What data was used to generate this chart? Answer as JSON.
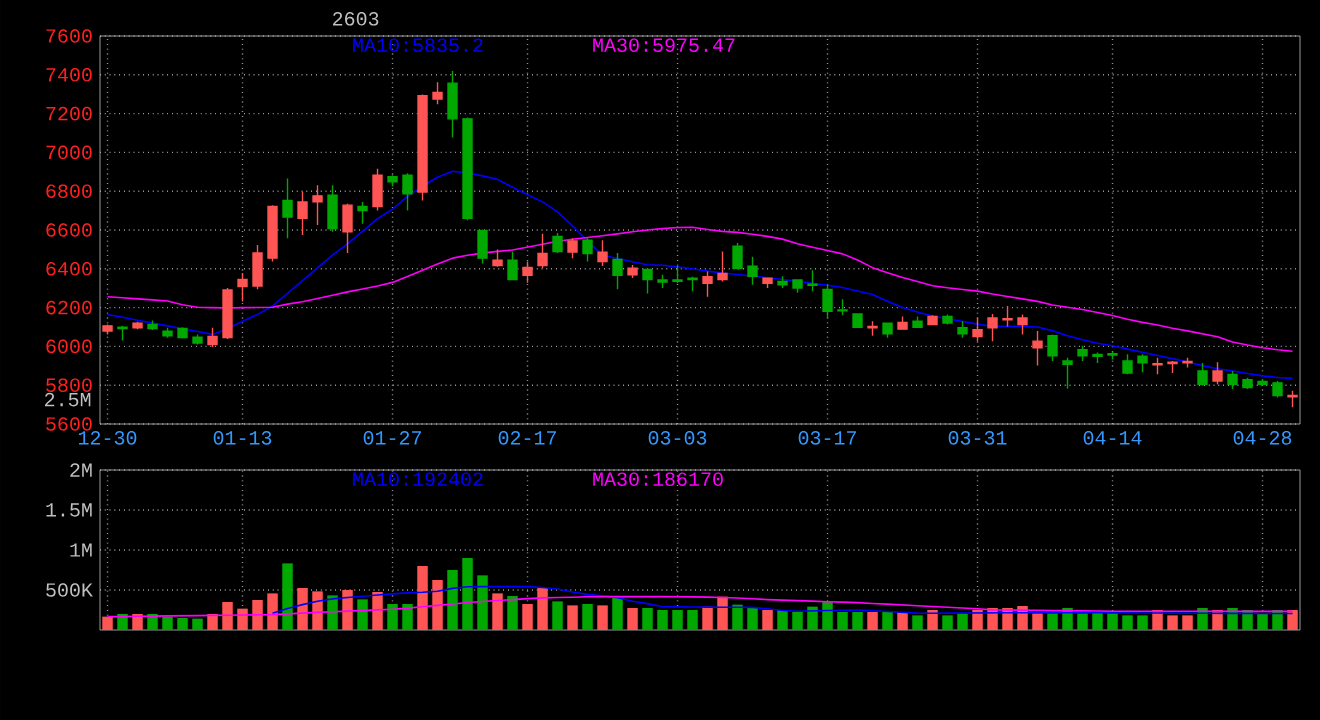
{
  "chart_data": [
    {
      "type": "candlestick",
      "title": "2603",
      "categories": [
        "12-30",
        null,
        null,
        null,
        null,
        null,
        null,
        null,
        null,
        "01-13",
        null,
        null,
        null,
        null,
        null,
        null,
        null,
        null,
        null,
        "01-27",
        null,
        null,
        null,
        null,
        null,
        null,
        null,
        null,
        "02-17",
        null,
        null,
        null,
        null,
        null,
        null,
        null,
        null,
        null,
        "03-03",
        null,
        null,
        null,
        null,
        null,
        null,
        null,
        null,
        null,
        "03-17",
        null,
        null,
        null,
        null,
        null,
        null,
        null,
        null,
        null,
        "03-31",
        null,
        null,
        null,
        null,
        null,
        null,
        null,
        null,
        "04-14",
        null,
        null,
        null,
        null,
        null,
        null,
        null,
        null,
        null,
        "04-28",
        null,
        null
      ],
      "ohlc": [
        [
          6079,
          6113,
          6062,
          6106
        ],
        [
          6099,
          6106,
          6031,
          6092
        ],
        [
          6096,
          6127,
          6089,
          6120
        ],
        [
          6113,
          6134,
          6085,
          6092
        ],
        [
          6079,
          6096,
          6045,
          6055
        ],
        [
          6092,
          6099,
          6041,
          6045
        ],
        [
          6048,
          6062,
          6010,
          6017
        ],
        [
          6010,
          6096,
          5997,
          6051
        ],
        [
          6045,
          6301,
          6038,
          6291
        ],
        [
          6308,
          6379,
          6232,
          6345
        ],
        [
          6311,
          6523,
          6294,
          6482
        ],
        [
          6455,
          6728,
          6438,
          6721
        ],
        [
          6752,
          6865,
          6557,
          6667
        ],
        [
          6660,
          6797,
          6574,
          6745
        ],
        [
          6745,
          6831,
          6626,
          6776
        ],
        [
          6779,
          6831,
          6591,
          6608
        ],
        [
          6591,
          6735,
          6482,
          6728
        ],
        [
          6721,
          6745,
          6632,
          6700
        ],
        [
          6721,
          6916,
          6700,
          6882
        ],
        [
          6875,
          6882,
          6824,
          6848
        ],
        [
          6882,
          6892,
          6700,
          6786
        ],
        [
          6796,
          7299,
          6752,
          7292
        ],
        [
          7275,
          7361,
          7248,
          7309
        ],
        [
          7357,
          7419,
          7077,
          7173
        ],
        [
          7173,
          7180,
          6650,
          6660
        ],
        [
          6598,
          6601,
          6427,
          6455
        ],
        [
          6417,
          6499,
          6410,
          6444
        ],
        [
          6444,
          6489,
          6345,
          6345
        ],
        [
          6366,
          6438,
          6328,
          6407
        ],
        [
          6417,
          6581,
          6403,
          6479
        ],
        [
          6567,
          6584,
          6482,
          6489
        ],
        [
          6486,
          6557,
          6455,
          6543
        ],
        [
          6547,
          6557,
          6438,
          6479
        ],
        [
          6438,
          6547,
          6414,
          6486
        ],
        [
          6448,
          6482,
          6294,
          6366
        ],
        [
          6369,
          6420,
          6352,
          6403
        ],
        [
          6397,
          6403,
          6273,
          6345
        ],
        [
          6342,
          6369,
          6301,
          6332
        ],
        [
          6342,
          6414,
          6325,
          6335
        ],
        [
          6352,
          6359,
          6284,
          6345
        ],
        [
          6325,
          6386,
          6256,
          6359
        ],
        [
          6345,
          6489,
          6335,
          6376
        ],
        [
          6516,
          6533,
          6397,
          6403
        ],
        [
          6414,
          6462,
          6318,
          6362
        ],
        [
          6325,
          6352,
          6301,
          6352
        ],
        [
          6335,
          6362,
          6301,
          6318
        ],
        [
          6342,
          6342,
          6277,
          6301
        ],
        [
          6321,
          6393,
          6284,
          6315
        ],
        [
          6294,
          6318,
          6147,
          6181
        ],
        [
          6188,
          6243,
          6161,
          6184
        ],
        [
          6167,
          6167,
          6099,
          6099
        ],
        [
          6096,
          6130,
          6055,
          6103
        ],
        [
          6120,
          6120,
          6045,
          6065
        ],
        [
          6089,
          6154,
          6089,
          6123
        ],
        [
          6130,
          6154,
          6099,
          6099
        ],
        [
          6113,
          6161,
          6113,
          6154
        ],
        [
          6154,
          6164,
          6113,
          6120
        ],
        [
          6096,
          6130,
          6045,
          6065
        ],
        [
          6051,
          6147,
          6027,
          6086
        ],
        [
          6096,
          6167,
          6027,
          6147
        ],
        [
          6137,
          6208,
          6103,
          6143
        ],
        [
          6113,
          6164,
          6062,
          6147
        ],
        [
          5993,
          6079,
          5901,
          6027
        ],
        [
          6055,
          6062,
          5925,
          5952
        ],
        [
          5925,
          5942,
          5782,
          5908
        ],
        [
          5983,
          6003,
          5925,
          5952
        ],
        [
          5959,
          5969,
          5915,
          5949
        ],
        [
          5962,
          5973,
          5932,
          5956
        ],
        [
          5925,
          5959,
          5857,
          5863
        ],
        [
          5949,
          5959,
          5867,
          5915
        ],
        [
          5905,
          5942,
          5857,
          5911
        ],
        [
          5911,
          5925,
          5863,
          5918
        ],
        [
          5915,
          5942,
          5891,
          5922
        ],
        [
          5873,
          5915,
          5798,
          5805
        ],
        [
          5822,
          5918,
          5805,
          5873
        ],
        [
          5856,
          5873,
          5781,
          5805
        ],
        [
          5829,
          5839,
          5781,
          5788
        ],
        [
          5819,
          5832,
          5798,
          5805
        ],
        [
          5812,
          5822,
          5737,
          5747
        ],
        [
          5740,
          5771,
          5686,
          5747
        ]
      ],
      "colors": [
        "#ff5555",
        "#00a800",
        "#ff5555",
        "#00a800",
        "#00a800",
        "#00a800",
        "#00a800",
        "#ff5555",
        "#ff5555",
        "#ff5555",
        "#ff5555",
        "#ff5555",
        "#00a800",
        "#ff5555",
        "#ff5555",
        "#00a800",
        "#ff5555",
        "#00a800",
        "#ff5555",
        "#00a800",
        "#00a800",
        "#ff5555",
        "#ff5555",
        "#00a800",
        "#00a800",
        "#00a800",
        "#ff5555",
        "#00a800",
        "#ff5555",
        "#ff5555",
        "#00a800",
        "#ff5555",
        "#00a800",
        "#ff5555",
        "#00a800",
        "#ff5555",
        "#00a800",
        "#00a800",
        "#00a800",
        "#00a800",
        "#ff5555",
        "#ff5555",
        "#00a800",
        "#00a800",
        "#ff5555",
        "#00a800",
        "#00a800",
        "#00a800",
        "#00a800",
        "#00a800",
        "#00a800",
        "#ff5555",
        "#00a800",
        "#ff5555",
        "#00a800",
        "#ff5555",
        "#00a800",
        "#00a800",
        "#ff5555",
        "#ff5555",
        "#ff5555",
        "#ff5555",
        "#ff5555",
        "#00a800",
        "#00a800",
        "#00a800",
        "#00a800",
        "#00a800",
        "#00a800",
        "#00a800",
        "#ff5555",
        "#ff5555",
        "#ff5555",
        "#00a800",
        "#ff5555",
        "#00a800",
        "#00a800",
        "#00a800",
        "#00a800",
        "#ff5555"
      ],
      "series": [
        {
          "name": "MA10:5835.2",
          "type": "line",
          "color": "#0000ff",
          "values": [
            6164,
            6150,
            6135,
            6120,
            6106,
            6091,
            6077,
            6062,
            6091,
            6130,
            6165,
            6208,
            6274,
            6339,
            6405,
            6470,
            6528,
            6593,
            6659,
            6707,
            6773,
            6827,
            6872,
            6903,
            6894,
            6879,
            6861,
            6820,
            6782,
            6745,
            6693,
            6622,
            6543,
            6470,
            6453,
            6436,
            6421,
            6418,
            6410,
            6400,
            6388,
            6378,
            6371,
            6363,
            6354,
            6345,
            6336,
            6325,
            6315,
            6304,
            6286,
            6268,
            6233,
            6200,
            6177,
            6157,
            6143,
            6129,
            6115,
            6103,
            6103,
            6103,
            6100,
            6081,
            6055,
            6034,
            6016,
            6003,
            5986,
            5970,
            5953,
            5937,
            5920,
            5901,
            5885,
            5873,
            5860,
            5848,
            5840,
            5835
          ]
        },
        {
          "name": "MA30:5975.47",
          "type": "line",
          "color": "#ff00ff",
          "values": [
            6256,
            6251,
            6245,
            6240,
            6234,
            6215,
            6202,
            6200,
            6198,
            6200,
            6201,
            6202,
            6218,
            6230,
            6247,
            6264,
            6281,
            6296,
            6311,
            6330,
            6360,
            6392,
            6425,
            6455,
            6470,
            6481,
            6490,
            6497,
            6512,
            6527,
            6542,
            6552,
            6561,
            6570,
            6580,
            6591,
            6600,
            6607,
            6613,
            6614,
            6603,
            6593,
            6588,
            6578,
            6567,
            6553,
            6529,
            6511,
            6494,
            6477,
            6445,
            6406,
            6380,
            6355,
            6335,
            6313,
            6302,
            6293,
            6285,
            6270,
            6257,
            6245,
            6232,
            6213,
            6202,
            6190,
            6175,
            6159,
            6140,
            6124,
            6110,
            6094,
            6080,
            6065,
            6050,
            6023,
            6007,
            5993,
            5983,
            5975
          ]
        }
      ],
      "ylim": [
        5600,
        7600
      ],
      "yticks": [
        5600,
        5800,
        6000,
        6200,
        6400,
        6600,
        6800,
        7000,
        7200,
        7400,
        7600
      ],
      "grid": true
    },
    {
      "type": "bar",
      "categories": [
        null,
        null,
        null,
        null,
        null,
        null,
        null,
        null,
        null,
        null,
        null,
        null,
        null,
        null,
        null,
        null,
        null,
        null,
        null,
        null,
        null,
        null,
        null,
        null,
        null,
        null,
        null,
        null,
        null,
        null,
        null,
        null,
        null,
        null,
        null,
        null,
        null,
        null,
        null,
        null,
        null,
        null,
        null,
        null,
        null,
        null,
        null,
        null,
        null,
        null,
        null,
        null,
        null,
        null,
        null,
        null,
        null,
        null,
        null,
        null,
        null,
        null,
        null,
        null,
        null,
        null,
        null,
        null,
        null,
        null,
        null,
        null,
        null,
        null,
        null,
        null,
        null,
        null,
        null,
        null
      ],
      "tick_labels": "y",
      "series": [
        {
          "values": [
            167000,
            200000,
            200000,
            200000,
            167000,
            150000,
            142000,
            200000,
            350000,
            267000,
            375000,
            458000,
            833000,
            525000,
            483000,
            433000,
            500000,
            383000,
            475000,
            325000,
            325000,
            800000,
            625000,
            750000,
            900000,
            683000,
            458000,
            425000,
            325000,
            525000,
            358000,
            308000,
            325000,
            308000,
            400000,
            275000,
            275000,
            250000,
            250000,
            250000,
            292000,
            417000,
            317000,
            275000,
            250000,
            250000,
            225000,
            292000,
            350000,
            225000,
            225000,
            225000,
            225000,
            225000,
            183000,
            250000,
            183000,
            208000,
            250000,
            275000,
            275000,
            300000,
            208000,
            208000,
            275000,
            208000,
            225000,
            208000,
            183000,
            183000,
            250000,
            183000,
            183000,
            275000,
            250000,
            275000,
            250000,
            208000,
            250000,
            250000
          ],
          "colors": [
            "#ff5555",
            "#00a800",
            "#ff5555",
            "#00a800",
            "#00a800",
            "#00a800",
            "#00a800",
            "#ff5555",
            "#ff5555",
            "#ff5555",
            "#ff5555",
            "#ff5555",
            "#00a800",
            "#ff5555",
            "#ff5555",
            "#00a800",
            "#ff5555",
            "#00a800",
            "#ff5555",
            "#00a800",
            "#00a800",
            "#ff5555",
            "#ff5555",
            "#00a800",
            "#00a800",
            "#00a800",
            "#ff5555",
            "#00a800",
            "#ff5555",
            "#ff5555",
            "#00a800",
            "#ff5555",
            "#00a800",
            "#ff5555",
            "#00a800",
            "#ff5555",
            "#00a800",
            "#00a800",
            "#00a800",
            "#00a800",
            "#ff5555",
            "#ff5555",
            "#00a800",
            "#00a800",
            "#ff5555",
            "#00a800",
            "#00a800",
            "#00a800",
            "#00a800",
            "#00a800",
            "#00a800",
            "#ff5555",
            "#00a800",
            "#ff5555",
            "#00a800",
            "#ff5555",
            "#00a800",
            "#00a800",
            "#ff5555",
            "#ff5555",
            "#ff5555",
            "#ff5555",
            "#ff5555",
            "#00a800",
            "#00a800",
            "#00a800",
            "#00a800",
            "#00a800",
            "#00a800",
            "#00a800",
            "#ff5555",
            "#ff5555",
            "#ff5555",
            "#00a800",
            "#ff5555",
            "#00a800",
            "#00a800",
            "#00a800",
            "#00a800",
            "#ff5555"
          ]
        },
        {
          "name": "MA10:192402",
          "type": "line",
          "color": "#0000ff",
          "values": [
            null,
            null,
            null,
            null,
            null,
            null,
            null,
            null,
            null,
            null,
            null,
            210000,
            270000,
            317000,
            359000,
            389000,
            406000,
            421000,
            437000,
            452000,
            464000,
            471000,
            484000,
            520000,
            540000,
            542000,
            542000,
            542000,
            542000,
            532000,
            512000,
            476000,
            445000,
            429000,
            404000,
            360000,
            330000,
            291000,
            289000,
            288000,
            286000,
            285000,
            284000,
            283000,
            265000,
            243000,
            235000,
            239000,
            243000,
            246000,
            250000,
            240000,
            231000,
            221000,
            211000,
            210000,
            211000,
            212000,
            213000,
            214000,
            215000,
            215000,
            216000,
            217000,
            216000,
            216000,
            215000,
            215000,
            214000,
            213000,
            212000,
            211000,
            211000,
            210000,
            209000,
            208000,
            208000,
            207000,
            207000,
            206000
          ]
        },
        {
          "name": "MA30:186170",
          "type": "line",
          "color": "#ff00ff",
          "values": [
            167000,
            169000,
            172000,
            174000,
            176000,
            178000,
            180000,
            183000,
            185000,
            187000,
            190000,
            192000,
            201000,
            211000,
            220000,
            229000,
            236000,
            244000,
            252000,
            260000,
            274000,
            291000,
            308000,
            325000,
            344000,
            357000,
            369000,
            380000,
            392000,
            402000,
            406000,
            410000,
            415000,
            417000,
            417000,
            417000,
            417000,
            417000,
            416000,
            414000,
            411000,
            406000,
            400000,
            391000,
            380000,
            373000,
            367000,
            361000,
            354000,
            348000,
            342000,
            332000,
            323000,
            313000,
            303000,
            294000,
            284000,
            275000,
            265000,
            252000,
            250000,
            248000,
            246000,
            244000,
            242000,
            240000,
            238000,
            235000,
            234000,
            234000,
            234000,
            234000,
            234000,
            234000,
            234000,
            234000,
            233000,
            233000,
            233000,
            233000
          ]
        }
      ],
      "ylim": [
        0,
        2000000
      ],
      "yticks": [
        {
          "value": 500000,
          "label": "500K"
        },
        {
          "value": 1000000,
          "label": "1M"
        },
        {
          "value": 1500000,
          "label": "1.5M"
        },
        {
          "value": 2000000,
          "label": "2M"
        }
      ],
      "grid": true,
      "annotations": [
        "2.5M"
      ]
    }
  ]
}
